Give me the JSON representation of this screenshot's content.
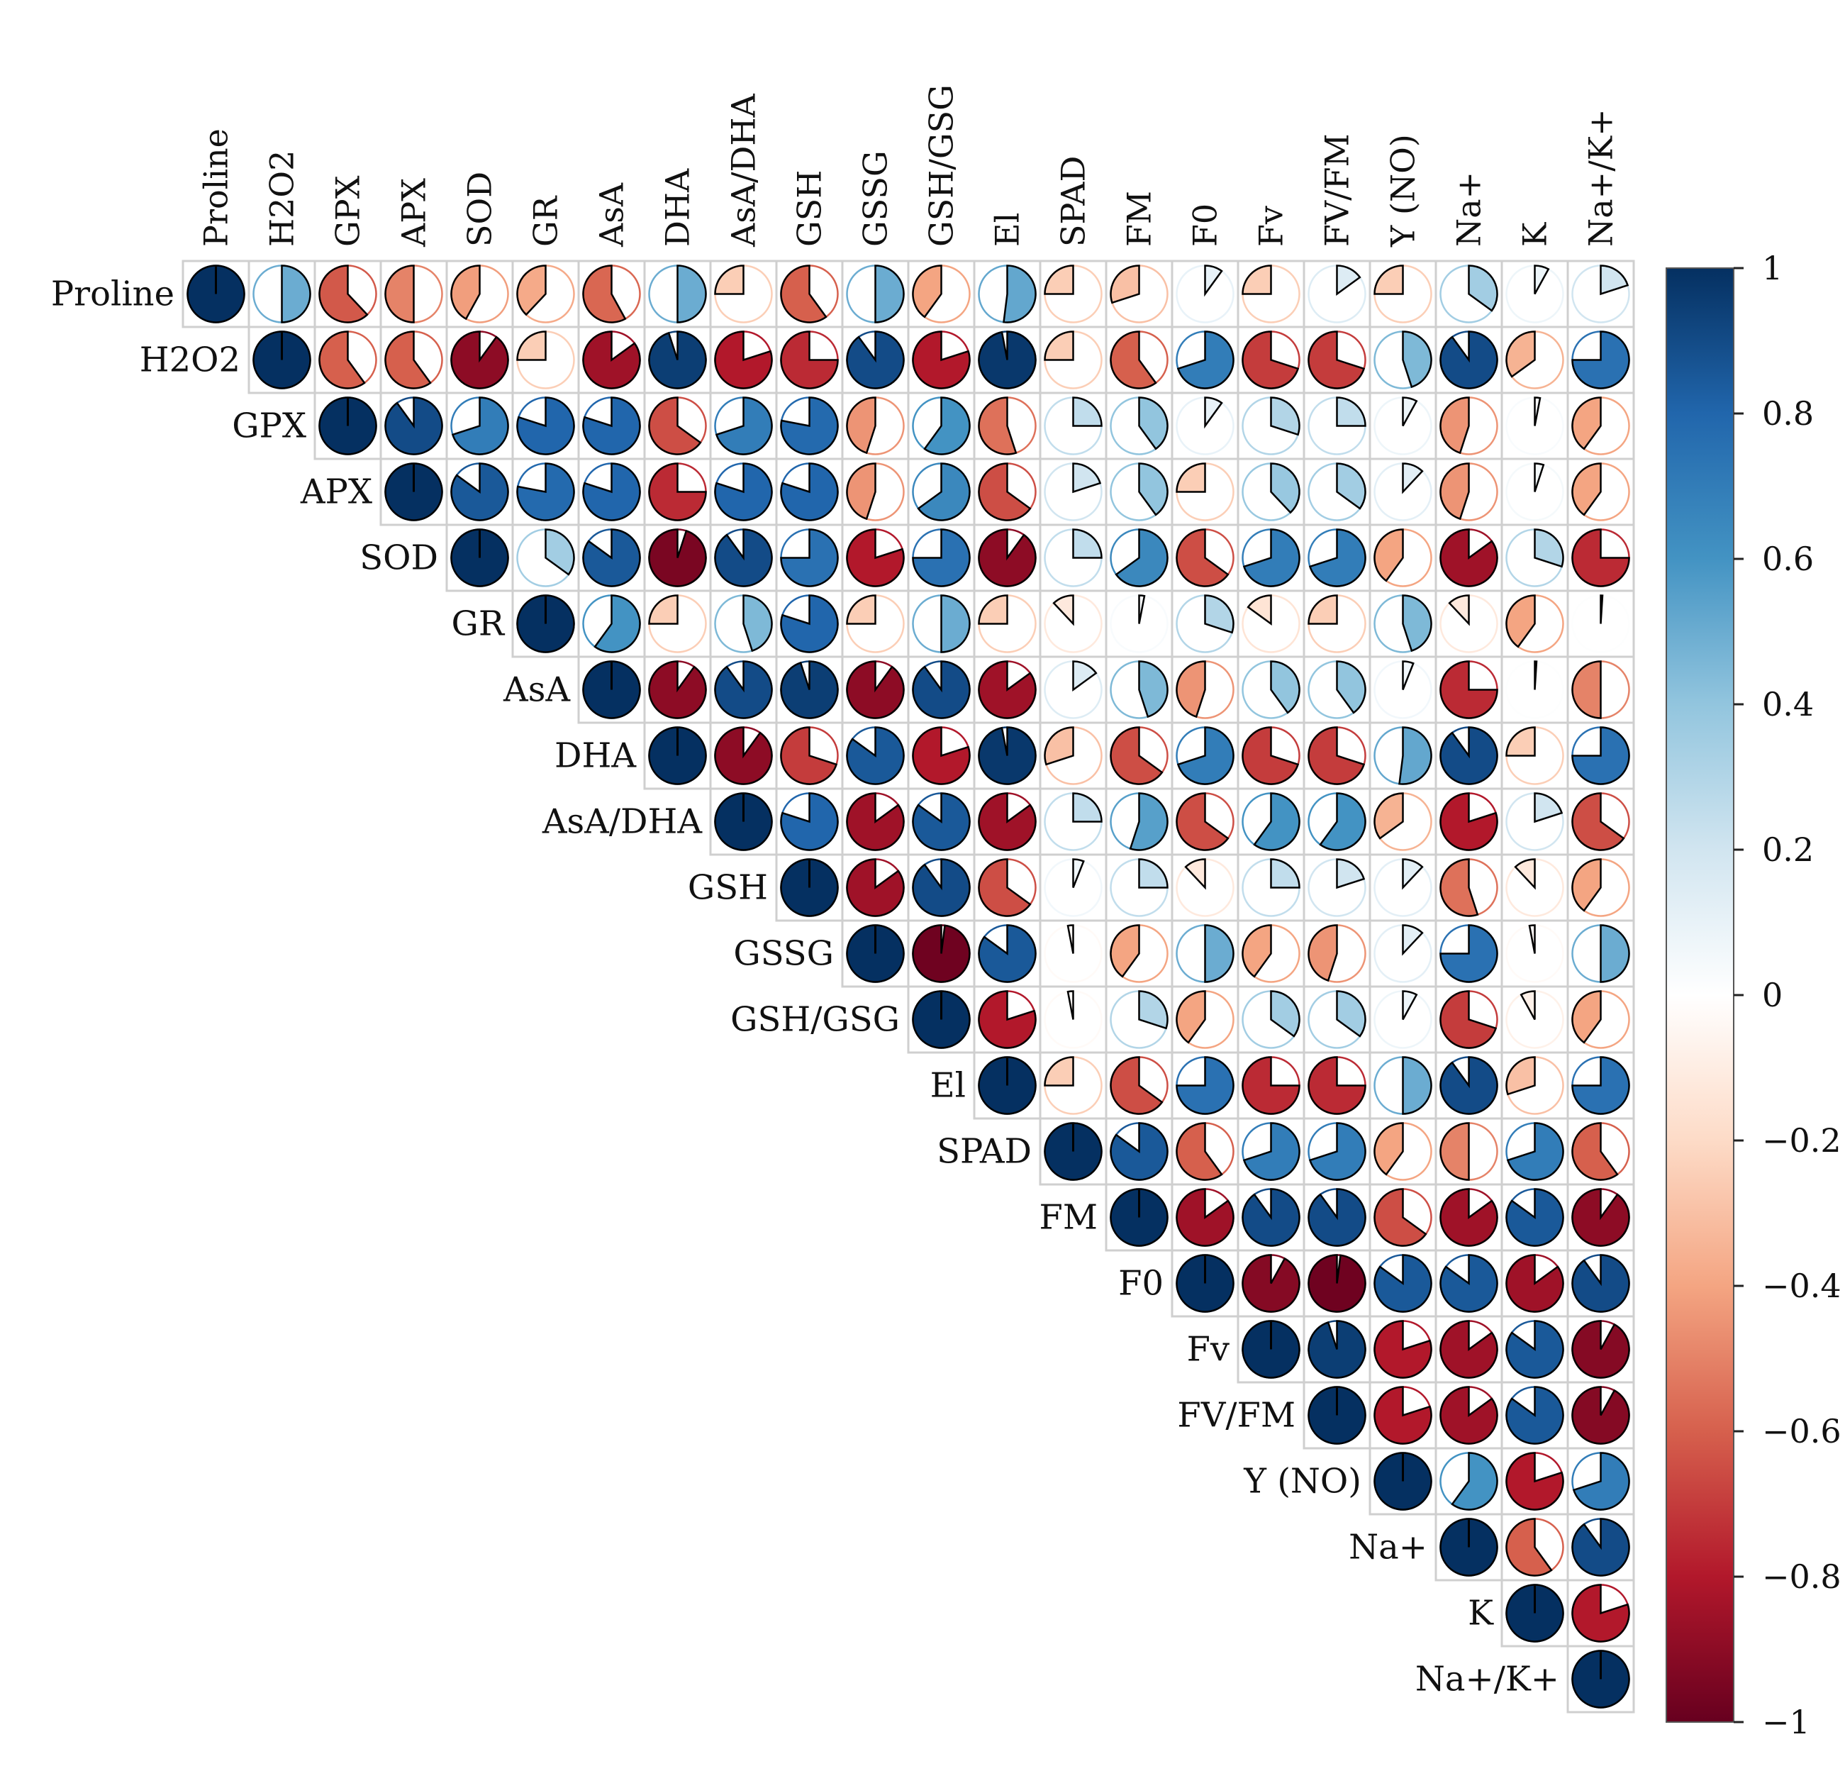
{
  "chart_data": {
    "type": "heatmap",
    "style": "pie",
    "triangle": "upper",
    "variables": [
      "Proline",
      "H2O2",
      "GPX",
      "APX",
      "SOD",
      "GR",
      "AsA",
      "DHA",
      "AsA/DHA",
      "GSH",
      "GSSG",
      "GSH/GSG",
      "El",
      "SPAD",
      "FM",
      "F0",
      "Fv",
      "FV/FM",
      "Y (NO)",
      "Na+",
      "K",
      "Na+/K+"
    ],
    "matrix": [
      [
        1.0,
        0.5,
        -0.62,
        -0.5,
        -0.42,
        -0.38,
        -0.58,
        0.5,
        -0.25,
        -0.6,
        0.5,
        -0.4,
        0.52,
        -0.25,
        -0.3,
        0.1,
        -0.25,
        0.15,
        -0.25,
        0.35,
        0.08,
        0.2
      ],
      [
        0.5,
        1.0,
        -0.6,
        -0.6,
        -0.9,
        -0.25,
        -0.85,
        0.95,
        -0.8,
        -0.75,
        0.9,
        -0.8,
        0.97,
        -0.25,
        -0.6,
        0.7,
        -0.7,
        -0.7,
        0.45,
        0.9,
        -0.35,
        0.75
      ],
      [
        -0.62,
        -0.6,
        1.0,
        0.9,
        0.7,
        0.8,
        0.8,
        -0.65,
        0.7,
        0.78,
        -0.45,
        0.6,
        -0.55,
        0.25,
        0.4,
        0.1,
        0.3,
        0.25,
        0.08,
        -0.45,
        0.03,
        -0.4
      ],
      [
        -0.5,
        -0.6,
        0.9,
        1.0,
        0.85,
        0.78,
        0.8,
        -0.75,
        0.8,
        0.8,
        -0.45,
        0.65,
        -0.65,
        0.2,
        0.4,
        -0.25,
        0.38,
        0.35,
        0.12,
        -0.45,
        0.05,
        -0.4
      ],
      [
        -0.42,
        -0.9,
        0.7,
        0.85,
        1.0,
        0.35,
        0.85,
        -0.95,
        0.9,
        0.75,
        -0.8,
        0.75,
        -0.9,
        0.25,
        0.65,
        -0.65,
        0.7,
        0.7,
        -0.4,
        -0.85,
        0.3,
        -0.75
      ],
      [
        -0.38,
        -0.25,
        0.8,
        0.78,
        0.35,
        1.0,
        0.6,
        -0.25,
        0.45,
        0.8,
        -0.25,
        0.5,
        -0.25,
        -0.12,
        0.03,
        0.3,
        -0.15,
        -0.25,
        0.45,
        -0.12,
        -0.4,
        0.01
      ],
      [
        -0.58,
        -0.85,
        0.8,
        0.8,
        0.85,
        0.6,
        1.0,
        -0.9,
        0.9,
        0.95,
        -0.9,
        0.9,
        -0.85,
        0.15,
        0.45,
        -0.45,
        0.4,
        0.4,
        0.06,
        -0.75,
        0.01,
        -0.5
      ],
      [
        0.5,
        0.95,
        -0.65,
        -0.75,
        -0.95,
        -0.25,
        -0.9,
        1.0,
        -0.9,
        -0.7,
        0.85,
        -0.8,
        0.97,
        -0.3,
        -0.65,
        0.7,
        -0.7,
        -0.7,
        0.52,
        0.9,
        -0.25,
        0.75
      ],
      [
        -0.25,
        -0.8,
        0.7,
        0.8,
        0.9,
        0.45,
        0.9,
        -0.9,
        1.0,
        0.8,
        -0.85,
        0.85,
        -0.85,
        0.25,
        0.55,
        -0.65,
        0.6,
        0.6,
        -0.35,
        -0.8,
        0.2,
        -0.65
      ],
      [
        -0.6,
        -0.75,
        0.78,
        0.8,
        0.75,
        0.8,
        0.95,
        -0.7,
        0.8,
        1.0,
        -0.85,
        0.9,
        -0.65,
        0.06,
        0.25,
        -0.12,
        0.25,
        0.2,
        0.12,
        -0.55,
        -0.12,
        -0.4
      ],
      [
        0.5,
        0.9,
        -0.45,
        -0.45,
        -0.8,
        -0.25,
        -0.9,
        0.85,
        -0.85,
        -0.85,
        1.0,
        -0.98,
        0.85,
        -0.03,
        -0.4,
        0.5,
        -0.4,
        -0.45,
        0.12,
        0.75,
        -0.03,
        0.5
      ],
      [
        -0.4,
        -0.8,
        0.6,
        0.65,
        0.75,
        0.5,
        0.9,
        -0.8,
        0.85,
        0.9,
        -0.98,
        1.0,
        -0.8,
        -0.03,
        0.3,
        -0.4,
        0.35,
        0.35,
        0.08,
        -0.7,
        -0.08,
        -0.4
      ],
      [
        0.52,
        0.97,
        -0.55,
        -0.65,
        -0.9,
        -0.25,
        -0.85,
        0.97,
        -0.85,
        -0.65,
        0.85,
        -0.8,
        1.0,
        -0.25,
        -0.65,
        0.75,
        -0.75,
        -0.75,
        0.5,
        0.9,
        -0.3,
        0.75
      ],
      [
        -0.25,
        -0.25,
        0.25,
        0.2,
        0.25,
        -0.12,
        0.15,
        -0.3,
        0.25,
        0.06,
        -0.03,
        -0.03,
        -0.25,
        1.0,
        0.85,
        -0.6,
        0.7,
        0.7,
        -0.4,
        -0.5,
        0.7,
        -0.6
      ],
      [
        -0.3,
        -0.6,
        0.4,
        0.4,
        0.65,
        0.03,
        0.45,
        -0.65,
        0.55,
        0.25,
        -0.4,
        0.3,
        -0.65,
        0.85,
        1.0,
        -0.85,
        0.9,
        0.9,
        -0.65,
        -0.85,
        0.85,
        -0.9
      ],
      [
        0.1,
        0.7,
        0.1,
        -0.25,
        -0.65,
        0.3,
        -0.45,
        0.7,
        -0.65,
        -0.12,
        0.5,
        -0.4,
        0.75,
        -0.6,
        -0.85,
        1.0,
        -0.92,
        -0.98,
        0.85,
        0.85,
        -0.85,
        0.9
      ],
      [
        -0.25,
        -0.7,
        0.3,
        0.38,
        0.7,
        -0.15,
        0.4,
        -0.7,
        0.6,
        0.25,
        -0.4,
        0.35,
        -0.75,
        0.7,
        0.9,
        -0.92,
        1.0,
        0.95,
        -0.8,
        -0.85,
        0.85,
        -0.92
      ],
      [
        0.15,
        -0.7,
        0.25,
        0.35,
        0.7,
        -0.25,
        0.4,
        -0.7,
        0.6,
        0.2,
        -0.45,
        0.35,
        -0.75,
        0.7,
        0.9,
        -0.98,
        0.95,
        1.0,
        -0.8,
        -0.85,
        0.85,
        -0.92
      ],
      [
        -0.25,
        0.45,
        0.08,
        0.12,
        -0.4,
        0.45,
        0.06,
        0.52,
        -0.35,
        0.12,
        0.12,
        0.08,
        0.5,
        -0.4,
        -0.65,
        0.85,
        -0.8,
        -0.8,
        1.0,
        0.6,
        -0.8,
        0.7
      ],
      [
        0.35,
        0.9,
        -0.45,
        -0.45,
        -0.85,
        -0.12,
        -0.75,
        0.9,
        -0.8,
        -0.55,
        0.75,
        -0.7,
        0.9,
        -0.5,
        -0.85,
        0.85,
        -0.85,
        -0.85,
        0.6,
        1.0,
        -0.6,
        0.9
      ],
      [
        0.08,
        -0.35,
        0.03,
        0.05,
        0.3,
        -0.4,
        0.01,
        -0.25,
        0.2,
        -0.12,
        -0.03,
        -0.08,
        -0.3,
        0.7,
        0.85,
        -0.85,
        0.85,
        0.85,
        -0.8,
        -0.6,
        1.0,
        -0.8
      ],
      [
        0.2,
        0.75,
        -0.4,
        -0.4,
        -0.75,
        0.01,
        -0.5,
        0.75,
        -0.65,
        -0.4,
        0.5,
        -0.4,
        0.75,
        -0.6,
        -0.9,
        0.9,
        -0.92,
        -0.92,
        0.7,
        0.9,
        -0.8,
        1.0
      ]
    ],
    "colorbar": {
      "min": -1,
      "max": 1,
      "ticks": [
        1,
        0.8,
        0.6,
        0.4,
        0.2,
        0,
        -0.2,
        -0.4,
        -0.6,
        -0.8,
        -1
      ],
      "tick_labels": [
        "1",
        "0.8",
        "0.6",
        "0.4",
        "0.2",
        "0",
        "−0.2",
        "−0.4",
        "−0.6",
        "−0.8",
        "−1"
      ],
      "colors": [
        "#67001F",
        "#B2182B",
        "#D6604D",
        "#F4A582",
        "#FDDBC7",
        "#FFFFFF",
        "#D1E5F0",
        "#92C5DE",
        "#4393C3",
        "#2166AC",
        "#053061"
      ]
    }
  }
}
